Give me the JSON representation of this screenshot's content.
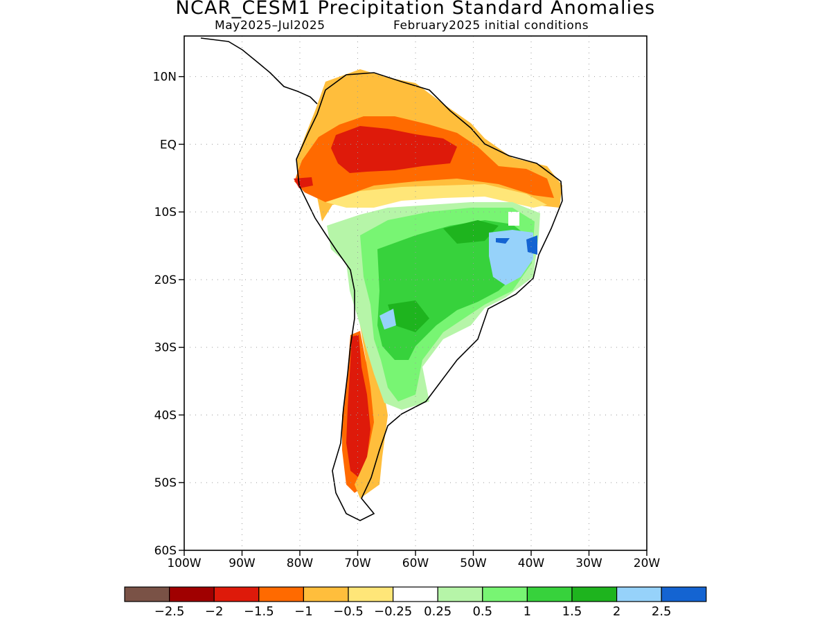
{
  "title": "NCAR_CESM1 Precipitation Standard Anomalies",
  "subtitle_left": "May2025–Jul2025",
  "subtitle_right": "February2025 initial conditions",
  "map": {
    "lon_range": [
      -100,
      -20
    ],
    "lat_range": [
      -60,
      16
    ],
    "lat_ticks": [
      {
        "value": 10,
        "label": "10N"
      },
      {
        "value": 0,
        "label": "EQ"
      },
      {
        "value": -10,
        "label": "10S"
      },
      {
        "value": -20,
        "label": "20S"
      },
      {
        "value": -30,
        "label": "30S"
      },
      {
        "value": -40,
        "label": "40S"
      },
      {
        "value": -50,
        "label": "50S"
      },
      {
        "value": -60,
        "label": "60S"
      }
    ],
    "lon_ticks": [
      {
        "value": -100,
        "label": "100W"
      },
      {
        "value": -90,
        "label": "90W"
      },
      {
        "value": -80,
        "label": "80W"
      },
      {
        "value": -70,
        "label": "70W"
      },
      {
        "value": -60,
        "label": "60W"
      },
      {
        "value": -50,
        "label": "50W"
      },
      {
        "value": -40,
        "label": "40W"
      },
      {
        "value": -30,
        "label": "30W"
      },
      {
        "value": -20,
        "label": "20W"
      }
    ],
    "grid": "dotted"
  },
  "colorbar": {
    "colors": [
      "#7a5246",
      "#a00000",
      "#de1a0a",
      "#ff6a00",
      "#ffbe3c",
      "#ffe678",
      "#ffffff",
      "#b6f5a8",
      "#78f573",
      "#37d23c",
      "#1eb41e",
      "#96d2fa",
      "#1464d2"
    ],
    "labels": [
      "−2.5",
      "−2",
      "−1.5",
      "−1",
      "−0.5",
      "−0.25",
      "0.25",
      "0.5",
      "1",
      "1.5",
      "2",
      "2.5"
    ]
  }
}
